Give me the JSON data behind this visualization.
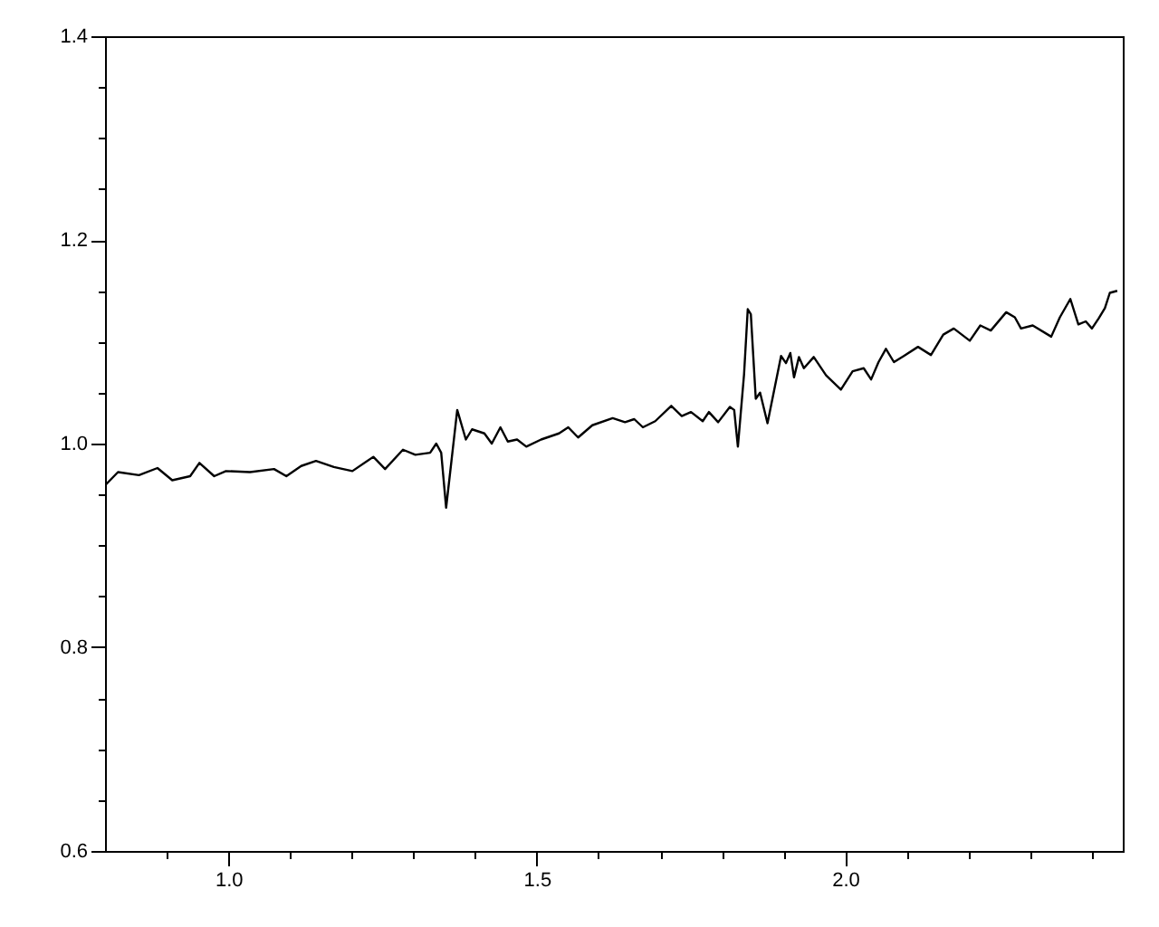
{
  "chart_data": {
    "type": "line",
    "x": [
      0.8,
      0.821,
      0.855,
      0.885,
      0.909,
      0.938,
      0.953,
      0.977,
      0.996,
      1.035,
      1.074,
      1.094,
      1.118,
      1.142,
      1.171,
      1.201,
      1.235,
      1.254,
      1.283,
      1.303,
      1.327,
      1.337,
      1.345,
      1.353,
      1.371,
      1.385,
      1.395,
      1.415,
      1.427,
      1.441,
      1.453,
      1.468,
      1.483,
      1.507,
      1.536,
      1.551,
      1.567,
      1.59,
      1.623,
      1.643,
      1.658,
      1.672,
      1.692,
      1.718,
      1.735,
      1.75,
      1.769,
      1.779,
      1.794,
      1.813,
      1.82,
      1.826,
      1.836,
      1.842,
      1.847,
      1.855,
      1.862,
      1.874,
      1.886,
      1.896,
      1.904,
      1.911,
      1.917,
      1.925,
      1.933,
      1.949,
      1.969,
      1.993,
      2.012,
      2.03,
      2.042,
      2.054,
      2.066,
      2.079,
      2.095,
      2.118,
      2.139,
      2.159,
      2.176,
      2.202,
      2.219,
      2.236,
      2.261,
      2.275,
      2.285,
      2.304,
      2.334,
      2.348,
      2.365,
      2.378,
      2.39,
      2.4,
      2.411,
      2.421,
      2.429,
      2.441
    ],
    "series": [
      {
        "color": "#000000",
        "values": [
          0.959,
          0.972,
          0.969,
          0.976,
          0.964,
          0.968,
          0.981,
          0.968,
          0.973,
          0.972,
          0.975,
          0.968,
          0.978,
          0.983,
          0.977,
          0.973,
          0.987,
          0.975,
          0.994,
          0.989,
          0.991,
          1.0,
          0.991,
          0.937,
          1.033,
          1.004,
          1.014,
          1.01,
          1.0,
          1.016,
          1.002,
          1.004,
          0.997,
          1.004,
          1.01,
          1.016,
          1.006,
          1.018,
          1.025,
          1.021,
          1.024,
          1.016,
          1.022,
          1.037,
          1.027,
          1.031,
          1.022,
          1.031,
          1.021,
          1.036,
          1.033,
          0.997,
          1.068,
          1.132,
          1.127,
          1.044,
          1.05,
          1.02,
          1.056,
          1.086,
          1.079,
          1.089,
          1.065,
          1.085,
          1.074,
          1.085,
          1.067,
          1.053,
          1.071,
          1.074,
          1.063,
          1.08,
          1.093,
          1.08,
          1.086,
          1.095,
          1.087,
          1.107,
          1.113,
          1.101,
          1.116,
          1.111,
          1.129,
          1.124,
          1.113,
          1.116,
          1.105,
          1.124,
          1.142,
          1.117,
          1.12,
          1.113,
          1.123,
          1.133,
          1.148,
          1.15
        ]
      }
    ],
    "xlim": [
      0.8,
      2.45
    ],
    "xticks": [
      {
        "value": 0.9,
        "label": null
      },
      {
        "value": 1.0,
        "label": "1.0"
      },
      {
        "value": 1.1,
        "label": null
      },
      {
        "value": 1.2,
        "label": null
      },
      {
        "value": 1.3,
        "label": null
      },
      {
        "value": 1.4,
        "label": null
      },
      1.5,
      {
        "value": 1.6,
        "label": null
      },
      {
        "value": 1.7,
        "label": null
      },
      {
        "value": 1.8,
        "label": null
      },
      {
        "value": 1.9,
        "label": null
      },
      {
        "value": 2.0,
        "label": "2.0"
      },
      {
        "value": 2.1,
        "label": null
      },
      {
        "value": 2.2,
        "label": null
      },
      {
        "value": 2.3,
        "label": null
      },
      {
        "value": 2.4,
        "label": null
      }
    ],
    "ylim": [
      0.6,
      1.4
    ],
    "yticks": [
      0.6,
      {
        "value": 0.65,
        "label": null
      },
      {
        "value": 0.7,
        "label": null
      },
      {
        "value": 0.75,
        "label": null
      },
      0.8,
      {
        "value": 0.85,
        "label": null
      },
      {
        "value": 0.9,
        "label": null
      },
      {
        "value": 0.95,
        "label": null
      },
      {
        "value": 1.0,
        "label": "1.0"
      },
      {
        "value": 1.05,
        "label": null
      },
      {
        "value": 1.1,
        "label": null
      },
      {
        "value": 1.15,
        "label": null
      },
      1.2,
      {
        "value": 1.25,
        "label": null
      },
      {
        "value": 1.3,
        "label": null
      },
      {
        "value": 1.35,
        "label": null
      },
      1.4
    ],
    "grid": false,
    "marker": "none",
    "line_style": "solid"
  }
}
